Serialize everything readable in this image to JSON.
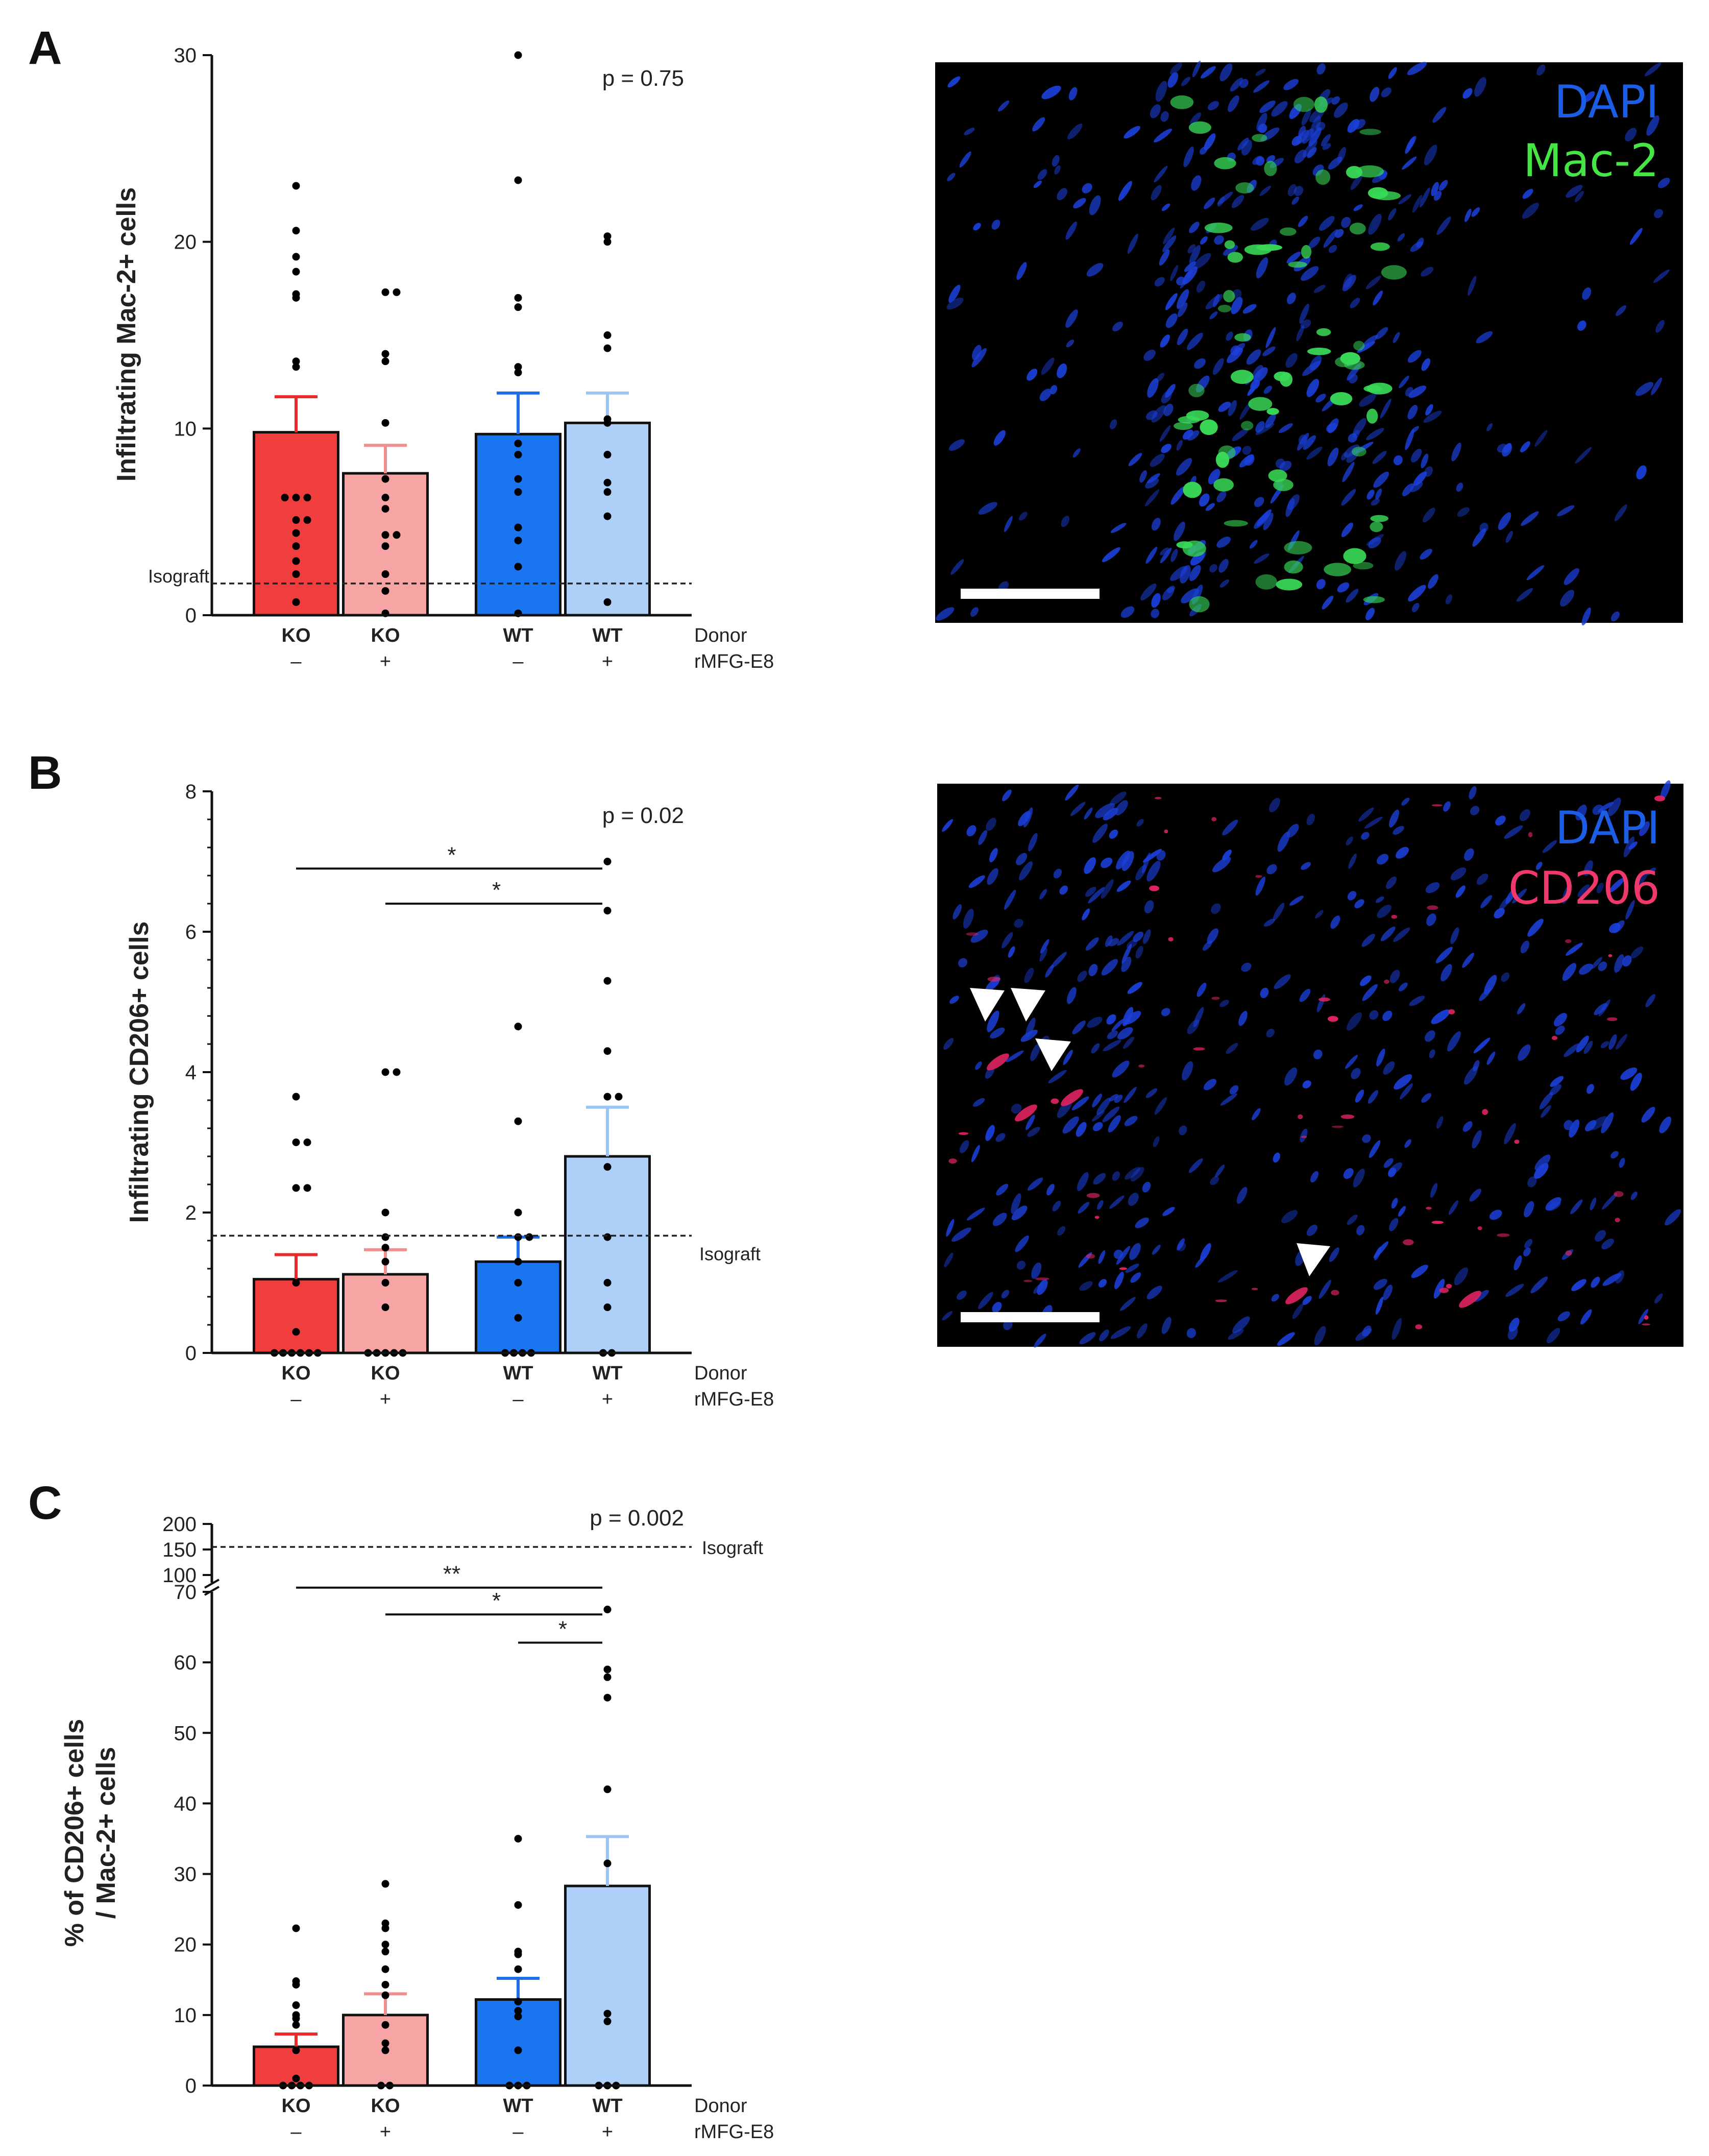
{
  "panels": [
    {
      "letter": "A",
      "chart_data": {
        "type": "bar",
        "ylabel": "Infiltrating Mac-2+ cells",
        "ylim": [
          0,
          30
        ],
        "yticks": [
          "0",
          "10",
          "20",
          "30"
        ],
        "categories": [
          "KO",
          "KO",
          "WT",
          "WT"
        ],
        "treatment": [
          "–",
          "+",
          "–",
          "+"
        ],
        "row_labels": [
          "Donor",
          "rMFG-E8"
        ],
        "values": [
          9.8,
          7.6,
          9.7,
          10.3
        ],
        "sem": [
          1.9,
          1.5,
          2.2,
          1.6
        ],
        "points": [
          [
            23,
            20.6,
            19.2,
            18.4,
            17.2,
            17,
            13.6,
            13.3,
            6.3,
            6.3,
            6.3,
            5.1,
            5.1,
            4.4,
            3.7,
            2.9,
            2.2,
            0.7
          ],
          [
            17.3,
            17.3,
            14,
            13.6,
            10.3,
            7.3,
            6.3,
            5.7,
            4.3,
            4.3,
            3.7,
            2.2,
            1.3,
            0.1
          ],
          [
            30,
            23.3,
            17,
            16.5,
            13.3,
            13,
            9.2,
            8.6,
            7.3,
            6.6,
            4.7,
            4,
            2.6,
            0.1
          ],
          [
            20.3,
            20,
            15,
            14.3,
            10.5,
            10.3,
            8.6,
            7.1,
            6.6,
            5.3,
            0.7
          ]
        ],
        "reference_label": "Isograft",
        "reference_value": 1.7,
        "annotation": "p = 0.75",
        "colors": [
          "#f03d3d",
          "#f7a4a4",
          "#1a75f0",
          "#aed0f8"
        ],
        "err_colors": [
          "#e82a2a",
          "#f08f8f",
          "#1e6fe6",
          "#9cc4f4"
        ],
        "significance": []
      },
      "image": {
        "channels": [
          {
            "label": "DAPI",
            "color": "#1c5de6"
          },
          {
            "label": "Mac-2",
            "color": "#45e545"
          }
        ]
      }
    },
    {
      "letter": "B",
      "chart_data": {
        "type": "bar",
        "ylabel": "Infiltrating CD206+ cells",
        "ylim": [
          0,
          8
        ],
        "yticks": [
          "0",
          "2",
          "4",
          "6",
          "8"
        ],
        "categories": [
          "KO",
          "KO",
          "WT",
          "WT"
        ],
        "treatment": [
          "–",
          "+",
          "–",
          "+"
        ],
        "row_labels": [
          "Donor",
          "rMFG-E8"
        ],
        "values": [
          1.05,
          1.12,
          1.3,
          2.8
        ],
        "sem": [
          0.35,
          0.35,
          0.35,
          0.7
        ],
        "points": [
          [
            3.65,
            3,
            3,
            2.35,
            2.35,
            1,
            0.3,
            0,
            0,
            0,
            0,
            0,
            0
          ],
          [
            4,
            4,
            2,
            1.65,
            1.5,
            1.3,
            1,
            0.65,
            0,
            0,
            0,
            0,
            0
          ],
          [
            4.65,
            3.3,
            2,
            1.65,
            1.65,
            1.3,
            1,
            0.5,
            0,
            0,
            0,
            0
          ],
          [
            7,
            6.3,
            5.3,
            4.3,
            3.65,
            3.65,
            2.65,
            1.65,
            1,
            0.65,
            0,
            0
          ]
        ],
        "reference_label": "Isograft",
        "reference_value": 1.67,
        "annotation": "p = 0.02",
        "colors": [
          "#f03d3d",
          "#f7a4a4",
          "#1a75f0",
          "#aed0f8"
        ],
        "err_colors": [
          "#e82a2a",
          "#f08f8f",
          "#1e6fe6",
          "#9cc4f4"
        ],
        "significance": [
          {
            "from": 0,
            "to": 3,
            "label": "*",
            "value": 6.9
          },
          {
            "from": 1,
            "to": 3,
            "label": "*",
            "value": 6.4
          }
        ]
      },
      "image": {
        "channels": [
          {
            "label": "DAPI",
            "color": "#1c5de6"
          },
          {
            "label": "CD206",
            "color": "#f0386a"
          }
        ]
      }
    },
    {
      "letter": "C",
      "chart_data": {
        "type": "bar",
        "ylabel_lines": [
          "% of CD206+ cells",
          "/ Mac-2+ cells"
        ],
        "ylim": [
          0,
          70
        ],
        "ylim_upper": [
          100,
          200
        ],
        "yticks": [
          "0",
          "10",
          "20",
          "30",
          "40",
          "50",
          "60",
          "70"
        ],
        "yticks_upper": [
          "100",
          "150",
          "200"
        ],
        "categories": [
          "KO",
          "KO",
          "WT",
          "WT"
        ],
        "treatment": [
          "–",
          "+",
          "–",
          "+"
        ],
        "row_labels": [
          "Donor",
          "rMFG-E8"
        ],
        "values": [
          5.5,
          10,
          12.2,
          28.3
        ],
        "sem": [
          1.8,
          3,
          3,
          7
        ],
        "points": [
          [
            22.3,
            14.8,
            14.3,
            11.4,
            10,
            9.5,
            8.6,
            5,
            1,
            0,
            0,
            0,
            0
          ],
          [
            28.6,
            23,
            22.3,
            20,
            19,
            16.5,
            14.3,
            12.8,
            8.6,
            6,
            5,
            0,
            0
          ],
          [
            35,
            25.6,
            19,
            18.6,
            16.5,
            11.9,
            10.6,
            9.8,
            5,
            0,
            0,
            0
          ],
          [
            67.5,
            59,
            57.9,
            55,
            42,
            31.5,
            10.2,
            9.1,
            0,
            0,
            0
          ]
        ],
        "reference_label": "Isograft",
        "reference_value_upper": 155,
        "annotation": "p = 0.002",
        "colors": [
          "#f03d3d",
          "#f7a4a4",
          "#1a75f0",
          "#aed0f8"
        ],
        "err_colors": [
          "#e82a2a",
          "#f08f8f",
          "#1e6fe6",
          "#9cc4f4"
        ],
        "significance": [
          {
            "from": 0,
            "to": 3,
            "label": "**",
            "value": 70.6
          },
          {
            "from": 1,
            "to": 3,
            "label": "*",
            "value": 66.8
          },
          {
            "from": 2,
            "to": 3,
            "label": "*",
            "value": 62.8
          }
        ]
      }
    }
  ]
}
